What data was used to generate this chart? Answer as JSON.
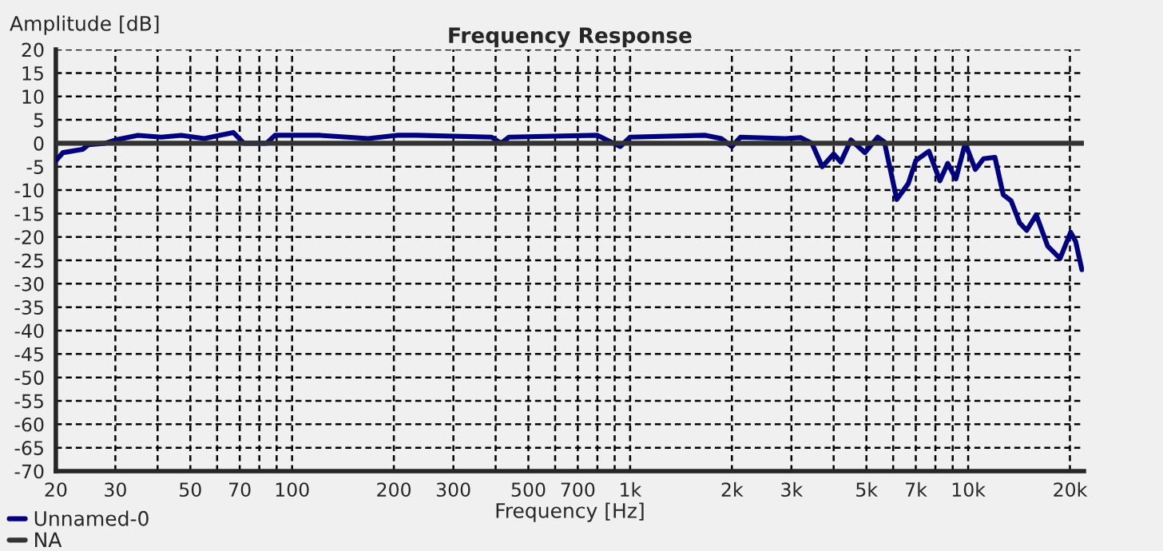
{
  "chart_data": {
    "type": "line",
    "title": "Frequency Response",
    "xlabel": "Frequency [Hz]",
    "ylabel": "Amplitude [dB]",
    "log": "x",
    "xlim": [
      20,
      22000
    ],
    "ylim": [
      -70,
      20
    ],
    "xticks": [
      20,
      30,
      {
        "value": 40,
        "label": null
      },
      50,
      {
        "value": 60,
        "label": null
      },
      70,
      {
        "value": 80,
        "label": null
      },
      {
        "value": 90,
        "label": null
      },
      100,
      200,
      300,
      {
        "value": 400,
        "label": null
      },
      500,
      {
        "value": 600,
        "label": null
      },
      700,
      {
        "value": 800,
        "label": null
      },
      {
        "value": 900,
        "label": null
      },
      {
        "value": 1000,
        "label": "1k"
      },
      {
        "value": 2000,
        "label": "2k"
      },
      {
        "value": 3000,
        "label": "3k"
      },
      {
        "value": 4000,
        "label": null
      },
      {
        "value": 5000,
        "label": "5k"
      },
      {
        "value": 6000,
        "label": null
      },
      {
        "value": 7000,
        "label": "7k"
      },
      {
        "value": 8000,
        "label": null
      },
      {
        "value": 9000,
        "label": null
      },
      {
        "value": 10000,
        "label": "10k"
      },
      {
        "value": 20000,
        "label": "20k"
      }
    ],
    "yticks": [
      20,
      15,
      10,
      5,
      0,
      -5,
      -10,
      -15,
      -20,
      -25,
      -30,
      -35,
      -40,
      -45,
      -50,
      -55,
      -60,
      -65,
      -70
    ],
    "grid": true,
    "legend": "bottom left",
    "line_style": "solid",
    "marker": "none",
    "series": [
      {
        "name": "Unnamed-0",
        "color": "#000080",
        "x": [
          20,
          21,
          24,
          25,
          28,
          30,
          35,
          41,
          47,
          55,
          61,
          67,
          72,
          84,
          89,
          121,
          168,
          204,
          233,
          389,
          415,
          438,
          800,
          935,
          1000,
          1670,
          1860,
          2000,
          2120,
          2870,
          3200,
          3450,
          3700,
          4000,
          4200,
          4500,
          4950,
          5400,
          5650,
          6150,
          6650,
          7000,
          7650,
          8250,
          8700,
          9200,
          9800,
          10500,
          11100,
          12000,
          12700,
          13400,
          14200,
          14900,
          15900,
          17200,
          18700,
          20100,
          20800,
          21700
        ],
        "values": [
          -3.7,
          -2,
          -1.3,
          -0.3,
          0,
          0.7,
          1.7,
          1.3,
          1.7,
          1,
          1.7,
          2.3,
          0,
          0,
          1.7,
          1.7,
          1,
          1.7,
          1.7,
          1.3,
          0,
          1.3,
          1.7,
          -0.7,
          1.3,
          1.7,
          1,
          -0.7,
          1.3,
          1,
          1.2,
          0,
          -5,
          -2.3,
          -4,
          0.7,
          -2,
          1.3,
          0.3,
          -12,
          -8.6,
          -3.7,
          -1.7,
          -8,
          -4.3,
          -7.6,
          0,
          -5.6,
          -3.3,
          -3,
          -11,
          -12.3,
          -17,
          -18.6,
          -15.3,
          -22,
          -24.6,
          -19,
          -21,
          -27
        ]
      },
      {
        "name": "NA",
        "color": "#333333",
        "x": [
          20,
          22000
        ],
        "values": [
          0,
          0
        ]
      }
    ]
  }
}
